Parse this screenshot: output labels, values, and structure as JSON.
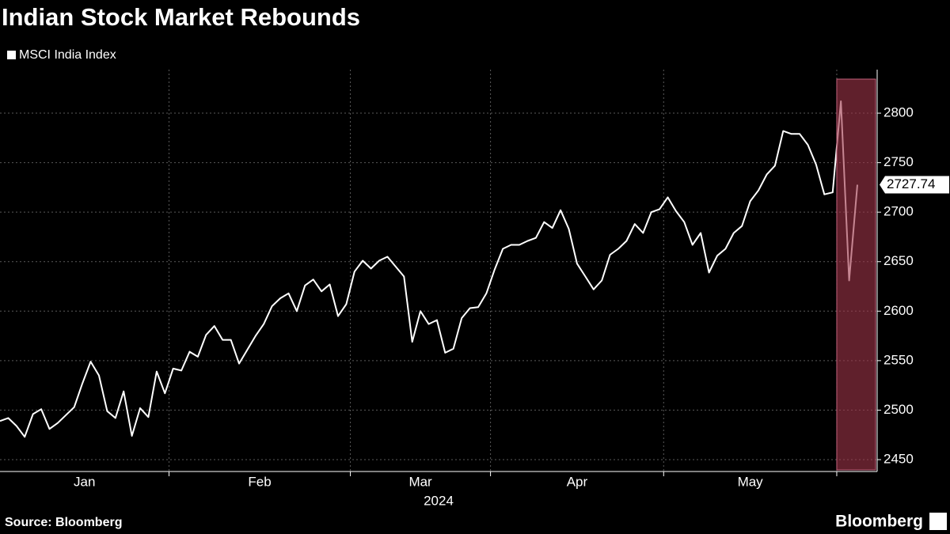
{
  "chart_data": {
    "type": "line",
    "title": "Indian Stock Market Rebounds",
    "source": "Source: Bloomberg",
    "brand": "Bloomberg",
    "year": "2024",
    "series": [
      {
        "name": "MSCI India Index",
        "color": "#ffffff"
      }
    ],
    "months": [
      {
        "label": "Jan",
        "values": [
          2489,
          2492,
          2484,
          2473,
          2496,
          2501,
          2481,
          2487,
          2495,
          2503,
          2527,
          2549,
          2535,
          2499,
          2492,
          2519,
          2474,
          2502,
          2493,
          2539,
          2517
        ]
      },
      {
        "label": "Feb",
        "values": [
          2542,
          2540,
          2559,
          2554,
          2576,
          2585,
          2571,
          2571,
          2547,
          2561,
          2575,
          2587,
          2605,
          2613,
          2618,
          2600,
          2626,
          2632,
          2620,
          2627,
          2595,
          2607
        ]
      },
      {
        "label": "Mar",
        "values": [
          2640,
          2651,
          2643,
          2651,
          2655,
          2645,
          2635,
          2569,
          2600,
          2587,
          2591,
          2558,
          2562,
          2593,
          2603,
          2604,
          2618
        ]
      },
      {
        "label": "Apr",
        "values": [
          2642,
          2663,
          2667,
          2667,
          2671,
          2674,
          2690,
          2684,
          2702,
          2683,
          2648,
          2635,
          2622,
          2631,
          2657,
          2663,
          2671,
          2688,
          2679,
          2700,
          2703
        ]
      },
      {
        "label": "May",
        "values": [
          2715,
          2701,
          2690,
          2667,
          2679,
          2639,
          2656,
          2663,
          2679,
          2686,
          2711,
          2722,
          2738,
          2747,
          2782,
          2779,
          2779,
          2768,
          2748,
          2718,
          2720
        ]
      },
      {
        "label": null,
        "values": [
          2812,
          2631,
          2727.74
        ]
      }
    ],
    "ylim": [
      2438,
      2844
    ],
    "yticks": [
      2450,
      2500,
      2550,
      2600,
      2650,
      2700,
      2750,
      2800
    ],
    "grid": true
  }
}
